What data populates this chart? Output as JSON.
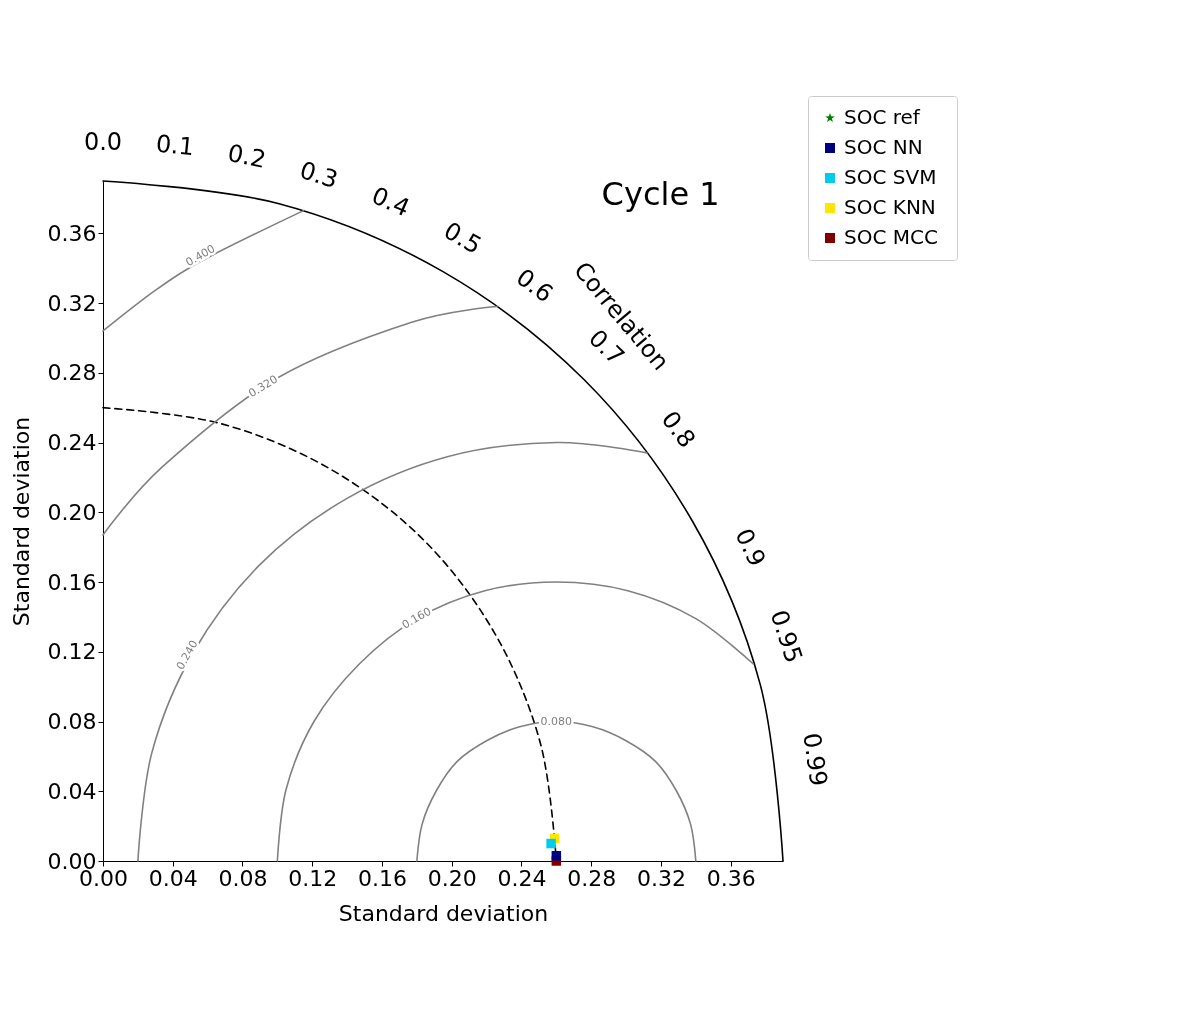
{
  "chart_data": {
    "type": "scatter",
    "title": "Cycle 1",
    "xlabel": "Standard deviation",
    "ylabel": "Standard deviation",
    "xlim": [
      0,
      0.39
    ],
    "ylim": [
      0,
      0.39
    ],
    "xticks": [
      {
        "value": 0,
        "label": "0.00"
      },
      {
        "value": 0.04,
        "label": "0.04"
      },
      {
        "value": 0.08,
        "label": "0.08"
      },
      {
        "value": 0.12,
        "label": "0.12"
      },
      {
        "value": 0.16,
        "label": "0.16"
      },
      {
        "value": 0.2,
        "label": "0.20"
      },
      {
        "value": 0.24,
        "label": "0.24"
      },
      {
        "value": 0.28,
        "label": "0.28"
      },
      {
        "value": 0.32,
        "label": "0.32"
      },
      {
        "value": 0.36,
        "label": "0.36"
      }
    ],
    "yticks": [
      {
        "value": 0,
        "label": "0.00"
      },
      {
        "value": 0.04,
        "label": "0.04"
      },
      {
        "value": 0.08,
        "label": "0.08"
      },
      {
        "value": 0.12,
        "label": "0.12"
      },
      {
        "value": 0.16,
        "label": "0.16"
      },
      {
        "value": 0.2,
        "label": "0.20"
      },
      {
        "value": 0.24,
        "label": "0.24"
      },
      {
        "value": 0.28,
        "label": "0.28"
      },
      {
        "value": 0.32,
        "label": "0.32"
      },
      {
        "value": 0.36,
        "label": "0.36"
      }
    ],
    "grid": false,
    "legend": "top right",
    "series": [
      {
        "type": "line",
        "color": "#000000",
        "line_style": "solid",
        "x": [
          0,
          0.101,
          0.195,
          0.276,
          0.338,
          0.377,
          0.39
        ],
        "values": [
          0.39,
          0.377,
          0.338,
          0.276,
          0.195,
          0.101,
          0
        ]
      },
      {
        "type": "line",
        "color": "#000000",
        "line_style": "dashed",
        "x": [
          0,
          0.067,
          0.13,
          0.184,
          0.225,
          0.251,
          0.26
        ],
        "values": [
          0.26,
          0.251,
          0.225,
          0.184,
          0.13,
          0.067,
          0
        ]
      },
      {
        "type": "line",
        "color": "#808080",
        "line_style": "solid",
        "x": [
          0.18,
          0.183,
          0.191,
          0.203,
          0.22,
          0.239,
          0.26,
          0.281,
          0.3,
          0.317,
          0.329,
          0.337,
          0.34
        ],
        "values": [
          0,
          0.021,
          0.04,
          0.057,
          0.069,
          0.077,
          0.08,
          0.077,
          0.069,
          0.057,
          0.04,
          0.021,
          0
        ]
      },
      {
        "type": "line",
        "color": "#808080",
        "line_style": "solid",
        "x": [
          0.1,
          0.105,
          0.121,
          0.147,
          0.18,
          0.219,
          0.26,
          0.301,
          0.34,
          0.373
        ],
        "values": [
          0,
          0.041,
          0.08,
          0.113,
          0.139,
          0.155,
          0.16,
          0.155,
          0.139,
          0.113
        ]
      },
      {
        "type": "line",
        "color": "#808080",
        "line_style": "solid",
        "x": [
          0.02,
          0.028,
          0.052,
          0.09,
          0.14,
          0.198,
          0.26,
          0.312
        ],
        "values": [
          0,
          0.062,
          0.12,
          0.17,
          0.208,
          0.232,
          0.24,
          0.234
        ]
      },
      {
        "type": "line",
        "color": "#808080",
        "line_style": "solid",
        "x": [
          0,
          0.034,
          0.1,
          0.177,
          0.226
        ],
        "values": [
          0.187,
          0.226,
          0.277,
          0.309,
          0.318
        ]
      },
      {
        "type": "line",
        "color": "#808080",
        "line_style": "solid",
        "x": [
          0,
          0.031,
          0.06,
          0.115
        ],
        "values": [
          0.304,
          0.328,
          0.346,
          0.373
        ]
      },
      {
        "name": "SOC  ref",
        "color": "#008000",
        "marker": "star",
        "x": [
          null
        ],
        "values": [
          null
        ]
      },
      {
        "name": "SOC  NN",
        "color": "#000080",
        "marker": "square",
        "x": [
          0.26
        ],
        "values": [
          0.003
        ]
      },
      {
        "name": "SOC  SVM",
        "color": "#00ccee",
        "marker": "square",
        "x": [
          0.257
        ],
        "values": [
          0.01
        ]
      },
      {
        "name": "SOC  KNN",
        "color": "#ffe600",
        "marker": "square",
        "x": [
          0.259
        ],
        "values": [
          0.013
        ]
      },
      {
        "name": "SOC  MCC",
        "color": "#800000",
        "marker": "square",
        "x": [
          0.26
        ],
        "values": [
          0
        ]
      }
    ],
    "annotations": [
      "0.0",
      "0.1",
      "0.2",
      "0.3",
      "0.4",
      "0.5",
      "0.6",
      "0.7",
      "0.8",
      "0.9",
      "0.95",
      "0.99",
      "Correlation",
      {
        "text": "0.400",
        "x": 0.056,
        "y": 0.347
      },
      {
        "text": "0.320",
        "x": 0.092,
        "y": 0.272
      },
      {
        "text": "0.240",
        "x": 0.0485,
        "y": 0.118
      },
      {
        "text": "0.160",
        "x": 0.18,
        "y": 0.139
      },
      {
        "text": "0.080",
        "x": 0.26,
        "y": 0.08
      }
    ]
  }
}
